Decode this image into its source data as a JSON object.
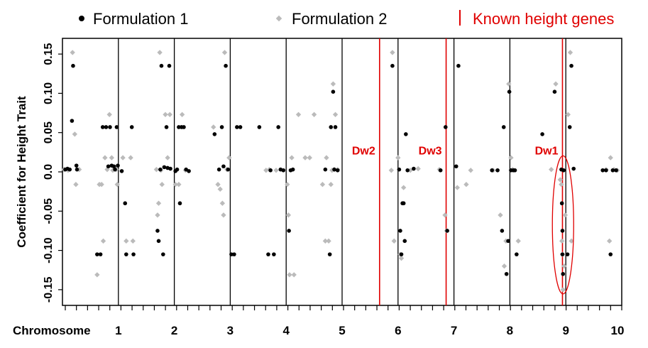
{
  "chart_data": {
    "type": "scatter",
    "title": "",
    "ylabel": "Coefficient for Height Trait",
    "xlabel": "Chromosome",
    "ylim": [
      -0.17,
      0.17
    ],
    "yticks": [
      -0.15,
      -0.1,
      -0.05,
      0.0,
      0.05,
      0.1,
      0.15
    ],
    "ytick_labels": [
      "-0.15",
      "-0.10",
      "-0.05",
      "0.0",
      "0.05",
      "0.10",
      "0.15"
    ],
    "xlim": [
      0,
      10
    ],
    "chromosomes": [
      "1",
      "2",
      "3",
      "4",
      "5",
      "6",
      "7",
      "8",
      "9",
      "10"
    ],
    "grid": false,
    "legend": {
      "placement": "top",
      "items": [
        {
          "label": "Formulation 1",
          "marker": "dot",
          "color": "#000000"
        },
        {
          "label": "Formulation 2",
          "marker": "diamond",
          "color": "#bbbbbb"
        },
        {
          "label": "Known height genes",
          "marker": "line",
          "color": "#e00000"
        }
      ]
    },
    "known_genes": [
      {
        "name": "Dw2",
        "x": 5.67
      },
      {
        "name": "Dw3",
        "x": 6.86
      },
      {
        "name": "Dw1",
        "x": 8.94
      }
    ],
    "highlight_ellipse": {
      "x": 8.95,
      "y_range": [
        -0.15,
        0.015
      ]
    },
    "series": [
      {
        "name": "Formulation 1",
        "color": "#000000",
        "points": [
          [
            0.05,
            0.003
          ],
          [
            0.09,
            0.004
          ],
          [
            0.13,
            0.003
          ],
          [
            0.17,
            0.065
          ],
          [
            0.19,
            0.135
          ],
          [
            0.25,
            0.008
          ],
          [
            0.26,
            0.003
          ],
          [
            0.62,
            -0.105
          ],
          [
            0.68,
            -0.105
          ],
          [
            0.72,
            0.057
          ],
          [
            0.78,
            0.057
          ],
          [
            0.82,
            0.007
          ],
          [
            0.85,
            0.057
          ],
          [
            0.88,
            0.008
          ],
          [
            0.92,
            0.007
          ],
          [
            0.94,
            0.003
          ],
          [
            0.97,
            0.057
          ],
          [
            0.99,
            0.008
          ],
          [
            1.06,
            0.001
          ],
          [
            1.12,
            -0.04
          ],
          [
            1.14,
            -0.105
          ],
          [
            1.24,
            0.057
          ],
          [
            1.27,
            -0.105
          ],
          [
            1.7,
            -0.075
          ],
          [
            1.72,
            -0.088
          ],
          [
            1.75,
            0.003
          ],
          [
            1.77,
            0.135
          ],
          [
            1.8,
            -0.105
          ],
          [
            1.82,
            0.006
          ],
          [
            1.86,
            0.057
          ],
          [
            1.88,
            0.005
          ],
          [
            1.91,
            0.135
          ],
          [
            1.93,
            0.004
          ],
          [
            2.02,
            0.001
          ],
          [
            2.05,
            0.003
          ],
          [
            2.08,
            0.057
          ],
          [
            2.1,
            -0.04
          ],
          [
            2.13,
            0.057
          ],
          [
            2.17,
            0.057
          ],
          [
            2.21,
            0.003
          ],
          [
            2.26,
            0.001
          ],
          [
            2.72,
            0.048
          ],
          [
            2.8,
            0.003
          ],
          [
            2.85,
            0.057
          ],
          [
            2.88,
            0.007
          ],
          [
            2.92,
            0.135
          ],
          [
            2.96,
            0.003
          ],
          [
            3.02,
            -0.105
          ],
          [
            3.07,
            -0.105
          ],
          [
            3.12,
            0.057
          ],
          [
            3.18,
            0.057
          ],
          [
            3.52,
            0.057
          ],
          [
            3.68,
            -0.105
          ],
          [
            3.72,
            0.002
          ],
          [
            3.78,
            -0.105
          ],
          [
            3.86,
            0.057
          ],
          [
            3.9,
            0.003
          ],
          [
            3.95,
            0.002
          ],
          [
            4.05,
            -0.075
          ],
          [
            4.08,
            0.002
          ],
          [
            4.12,
            0.003
          ],
          [
            4.7,
            0.003
          ],
          [
            4.78,
            -0.105
          ],
          [
            4.8,
            0.057
          ],
          [
            4.84,
            0.102
          ],
          [
            4.86,
            0.003
          ],
          [
            4.88,
            0.057
          ],
          [
            4.92,
            0.002
          ],
          [
            5.9,
            0.135
          ],
          [
            6.02,
            0.003
          ],
          [
            6.04,
            -0.075
          ],
          [
            6.06,
            -0.105
          ],
          [
            6.08,
            -0.04
          ],
          [
            6.1,
            -0.04
          ],
          [
            6.12,
            -0.088
          ],
          [
            6.14,
            0.048
          ],
          [
            6.17,
            0.002
          ],
          [
            6.28,
            0.004
          ],
          [
            6.76,
            0.002
          ],
          [
            6.85,
            0.057
          ],
          [
            6.88,
            -0.075
          ],
          [
            7.04,
            0.007
          ],
          [
            7.08,
            0.135
          ],
          [
            7.68,
            0.002
          ],
          [
            7.78,
            0.002
          ],
          [
            7.86,
            -0.075
          ],
          [
            7.89,
            0.057
          ],
          [
            7.94,
            -0.13
          ],
          [
            7.97,
            -0.088
          ],
          [
            7.99,
            0.102
          ],
          [
            8.02,
            0.002
          ],
          [
            8.06,
            0.002
          ],
          [
            8.09,
            0.002
          ],
          [
            8.12,
            -0.105
          ],
          [
            8.58,
            0.048
          ],
          [
            8.8,
            0.102
          ],
          [
            8.92,
            0.003
          ],
          [
            8.93,
            -0.04
          ],
          [
            8.94,
            -0.075
          ],
          [
            8.94,
            -0.105
          ],
          [
            8.95,
            -0.13
          ],
          [
            8.96,
            0.002
          ],
          [
            9.03,
            -0.105
          ],
          [
            9.07,
            0.057
          ],
          [
            9.1,
            0.135
          ],
          [
            9.14,
            0.004
          ],
          [
            9.66,
            0.002
          ],
          [
            9.72,
            0.002
          ],
          [
            9.8,
            -0.105
          ],
          [
            9.84,
            0.002
          ],
          [
            9.9,
            0.002
          ]
        ]
      },
      {
        "name": "Formulation 2",
        "color": "#bbbbbb",
        "points": [
          [
            0.03,
            0.003
          ],
          [
            0.1,
            0.002
          ],
          [
            0.18,
            0.152
          ],
          [
            0.22,
            0.048
          ],
          [
            0.24,
            -0.016
          ],
          [
            0.3,
            0.003
          ],
          [
            0.62,
            -0.131
          ],
          [
            0.66,
            -0.016
          ],
          [
            0.7,
            -0.016
          ],
          [
            0.73,
            -0.088
          ],
          [
            0.76,
            0.018
          ],
          [
            0.8,
            0.003
          ],
          [
            0.84,
            0.073
          ],
          [
            0.88,
            0.018
          ],
          [
            0.9,
            0.002
          ],
          [
            0.96,
            0.003
          ],
          [
            0.98,
            -0.016
          ],
          [
            1.08,
            0.018
          ],
          [
            1.14,
            -0.088
          ],
          [
            1.22,
            0.018
          ],
          [
            1.26,
            -0.088
          ],
          [
            1.68,
            0.003
          ],
          [
            1.7,
            -0.055
          ],
          [
            1.72,
            -0.04
          ],
          [
            1.74,
            0.152
          ],
          [
            1.76,
            0.002
          ],
          [
            1.78,
            -0.016
          ],
          [
            1.84,
            0.073
          ],
          [
            1.88,
            0.018
          ],
          [
            1.92,
            0.073
          ],
          [
            2.02,
            -0.016
          ],
          [
            2.08,
            -0.016
          ],
          [
            2.14,
            0.073
          ],
          [
            2.2,
            0.002
          ],
          [
            2.7,
            0.057
          ],
          [
            2.78,
            -0.016
          ],
          [
            2.82,
            -0.022
          ],
          [
            2.86,
            -0.04
          ],
          [
            2.88,
            -0.055
          ],
          [
            2.9,
            0.152
          ],
          [
            2.94,
            0.003
          ],
          [
            2.98,
            0.018
          ],
          [
            3.64,
            0.002
          ],
          [
            3.7,
            0.003
          ],
          [
            3.82,
            0.002
          ],
          [
            4.02,
            -0.016
          ],
          [
            4.04,
            -0.055
          ],
          [
            4.06,
            -0.131
          ],
          [
            4.1,
            0.018
          ],
          [
            4.14,
            -0.131
          ],
          [
            4.22,
            0.073
          ],
          [
            4.34,
            0.018
          ],
          [
            4.42,
            0.018
          ],
          [
            4.5,
            0.073
          ],
          [
            4.65,
            -0.016
          ],
          [
            4.7,
            -0.088
          ],
          [
            4.72,
            0.018
          ],
          [
            4.76,
            -0.088
          ],
          [
            4.8,
            -0.016
          ],
          [
            4.82,
            0.002
          ],
          [
            4.84,
            0.112
          ],
          [
            4.86,
            0.003
          ],
          [
            4.88,
            0.073
          ],
          [
            4.92,
            0.003
          ],
          [
            5.88,
            0.002
          ],
          [
            5.9,
            0.152
          ],
          [
            5.93,
            -0.088
          ],
          [
            6.0,
            0.018
          ],
          [
            6.04,
            -0.105
          ],
          [
            6.06,
            -0.11
          ],
          [
            6.1,
            -0.02
          ],
          [
            6.22,
            0.002
          ],
          [
            6.36,
            0.004
          ],
          [
            6.74,
            0.003
          ],
          [
            6.84,
            -0.055
          ],
          [
            6.87,
            -0.075
          ],
          [
            7.06,
            -0.02
          ],
          [
            7.22,
            -0.016
          ],
          [
            7.3,
            0.002
          ],
          [
            7.7,
            0.002
          ],
          [
            7.83,
            -0.055
          ],
          [
            7.9,
            -0.12
          ],
          [
            7.93,
            -0.088
          ],
          [
            7.98,
            0.112
          ],
          [
            8.02,
            0.018
          ],
          [
            8.05,
            0.003
          ],
          [
            8.15,
            -0.088
          ],
          [
            8.74,
            0.003
          ],
          [
            8.82,
            0.112
          ],
          [
            8.9,
            -0.01
          ],
          [
            8.92,
            -0.016
          ],
          [
            8.93,
            -0.088
          ],
          [
            8.94,
            -0.105
          ],
          [
            8.95,
            -0.15
          ],
          [
            8.97,
            -0.12
          ],
          [
            8.99,
            -0.055
          ],
          [
            9.04,
            0.073
          ],
          [
            9.08,
            0.152
          ],
          [
            9.1,
            -0.088
          ],
          [
            9.72,
            0.003
          ],
          [
            9.78,
            -0.088
          ],
          [
            9.8,
            0.018
          ],
          [
            9.86,
            0.003
          ],
          [
            9.92,
            0.002
          ]
        ]
      }
    ]
  }
}
